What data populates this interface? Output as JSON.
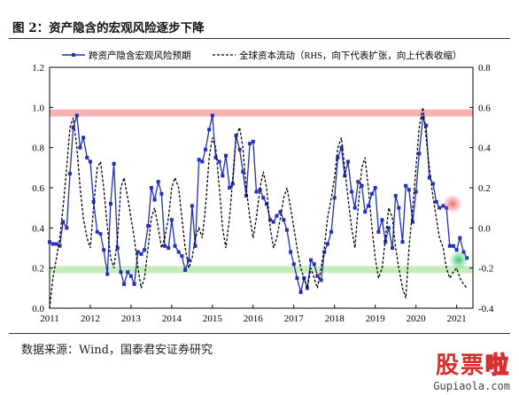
{
  "title": "图 2：资产隐含的宏观风险逐步下降",
  "source": "数据来源：Wind，国泰君安证券研究",
  "watermark": {
    "cn": "股票",
    "cn2": "啦",
    "en": "Gupiaola.com"
  },
  "colors": {
    "series1": "#1f2fbf",
    "series2": "#000000",
    "band_high": "#f6a6a6",
    "band_low": "#bde8b0",
    "marker_red": "#f26b6b",
    "marker_green": "#3cc46a"
  },
  "chart_data": {
    "type": "line",
    "x_range": [
      2011.0,
      2021.4
    ],
    "ylim_left": [
      0,
      1.2
    ],
    "ylim_right": [
      -0.4,
      0.8
    ],
    "x_ticks": [
      "2011",
      "2012",
      "2013",
      "2014",
      "2015",
      "2016",
      "2017",
      "2018",
      "2019",
      "2020",
      "2021"
    ],
    "y_left_ticks": [
      "0.0",
      "0.2",
      "0.4",
      "0.6",
      "0.8",
      "1.0",
      "1.2"
    ],
    "y_right_ticks": [
      "-0.4",
      "-0.2",
      "0.0",
      "0.2",
      "0.4",
      "0.6",
      "0.8"
    ],
    "bands": [
      {
        "axis": "left",
        "from": 0.955,
        "to": 0.99,
        "color": "band_high"
      },
      {
        "axis": "left",
        "from": 0.175,
        "to": 0.21,
        "color": "band_low"
      }
    ],
    "highlights": [
      {
        "x": 2020.9,
        "y_left": 0.52,
        "color": "marker_red"
      },
      {
        "x": 2021.05,
        "y_left": 0.24,
        "color": "marker_green"
      }
    ],
    "series": [
      {
        "name": "跨资产隐含宏观风险预期",
        "axis": "left",
        "style": "solid-marker",
        "x": [
          2011.0,
          2011.08,
          2011.17,
          2011.25,
          2011.33,
          2011.42,
          2011.5,
          2011.58,
          2011.67,
          2011.75,
          2011.83,
          2011.92,
          2012.0,
          2012.08,
          2012.17,
          2012.25,
          2012.33,
          2012.42,
          2012.5,
          2012.58,
          2012.67,
          2012.75,
          2012.83,
          2012.92,
          2013.0,
          2013.08,
          2013.17,
          2013.25,
          2013.33,
          2013.42,
          2013.5,
          2013.58,
          2013.67,
          2013.75,
          2013.83,
          2013.92,
          2014.0,
          2014.08,
          2014.17,
          2014.25,
          2014.33,
          2014.42,
          2014.5,
          2014.58,
          2014.67,
          2014.75,
          2014.83,
          2014.92,
          2015.0,
          2015.08,
          2015.17,
          2015.25,
          2015.33,
          2015.42,
          2015.5,
          2015.58,
          2015.67,
          2015.75,
          2015.83,
          2015.92,
          2016.0,
          2016.08,
          2016.17,
          2016.25,
          2016.33,
          2016.42,
          2016.5,
          2016.58,
          2016.67,
          2016.75,
          2016.83,
          2016.92,
          2017.0,
          2017.08,
          2017.17,
          2017.25,
          2017.33,
          2017.42,
          2017.5,
          2017.58,
          2017.67,
          2017.75,
          2017.83,
          2017.92,
          2018.0,
          2018.08,
          2018.17,
          2018.25,
          2018.33,
          2018.42,
          2018.5,
          2018.58,
          2018.67,
          2018.75,
          2018.83,
          2018.92,
          2019.0,
          2019.08,
          2019.17,
          2019.25,
          2019.33,
          2019.42,
          2019.5,
          2019.58,
          2019.67,
          2019.75,
          2019.83,
          2019.92,
          2020.0,
          2020.08,
          2020.17,
          2020.25,
          2020.33,
          2020.42,
          2020.5,
          2020.58,
          2020.67,
          2020.75,
          2020.83,
          2020.92,
          2021.0,
          2021.08,
          2021.17,
          2021.25
        ],
        "y": [
          0.33,
          0.32,
          0.32,
          0.31,
          0.43,
          0.4,
          0.67,
          0.9,
          0.96,
          0.8,
          0.85,
          0.75,
          0.73,
          0.53,
          0.38,
          0.37,
          0.29,
          0.17,
          0.52,
          0.72,
          0.3,
          0.18,
          0.12,
          0.18,
          0.16,
          0.12,
          0.28,
          0.27,
          0.29,
          0.41,
          0.6,
          0.54,
          0.63,
          0.57,
          0.31,
          0.3,
          0.44,
          0.31,
          0.28,
          0.26,
          0.19,
          0.24,
          0.51,
          0.31,
          0.74,
          0.73,
          0.79,
          0.89,
          0.96,
          0.75,
          0.73,
          0.66,
          0.76,
          0.6,
          0.62,
          0.86,
          0.79,
          0.68,
          0.56,
          0.82,
          0.83,
          0.58,
          0.59,
          0.55,
          0.52,
          0.44,
          0.43,
          0.46,
          0.48,
          0.44,
          0.39,
          0.28,
          0.22,
          0.15,
          0.08,
          0.15,
          0.1,
          0.24,
          0.22,
          0.16,
          0.14,
          0.28,
          0.32,
          0.38,
          0.55,
          0.75,
          0.8,
          0.66,
          0.73,
          0.58,
          0.5,
          0.63,
          0.61,
          0.48,
          0.51,
          0.57,
          0.6,
          0.38,
          0.44,
          0.33,
          0.4,
          0.3,
          0.56,
          0.5,
          0.33,
          0.61,
          0.59,
          0.43,
          0.58,
          0.77,
          0.95,
          0.91,
          0.65,
          0.62,
          0.53,
          0.5,
          0.51,
          0.5,
          0.31,
          0.31,
          0.29,
          0.35,
          0.28,
          0.25
        ]
      },
      {
        "name": "全球资本流动（RHS，向下代表扩张，向上代表收缩）",
        "axis": "right",
        "style": "dashed",
        "x": [
          2011.0,
          2011.08,
          2011.17,
          2011.25,
          2011.33,
          2011.42,
          2011.5,
          2011.58,
          2011.67,
          2011.75,
          2011.83,
          2011.92,
          2012.0,
          2012.08,
          2012.17,
          2012.25,
          2012.33,
          2012.42,
          2012.5,
          2012.58,
          2012.67,
          2012.75,
          2012.83,
          2012.92,
          2013.0,
          2013.08,
          2013.17,
          2013.25,
          2013.33,
          2013.42,
          2013.5,
          2013.58,
          2013.67,
          2013.75,
          2013.83,
          2013.92,
          2014.0,
          2014.08,
          2014.17,
          2014.25,
          2014.33,
          2014.42,
          2014.5,
          2014.58,
          2014.67,
          2014.75,
          2014.83,
          2014.92,
          2015.0,
          2015.08,
          2015.17,
          2015.25,
          2015.33,
          2015.42,
          2015.5,
          2015.58,
          2015.67,
          2015.75,
          2015.83,
          2015.92,
          2016.0,
          2016.08,
          2016.17,
          2016.25,
          2016.33,
          2016.42,
          2016.5,
          2016.58,
          2016.67,
          2016.75,
          2016.83,
          2016.92,
          2017.0,
          2017.08,
          2017.17,
          2017.25,
          2017.33,
          2017.42,
          2017.5,
          2017.58,
          2017.67,
          2017.75,
          2017.83,
          2017.92,
          2018.0,
          2018.08,
          2018.17,
          2018.25,
          2018.33,
          2018.42,
          2018.5,
          2018.58,
          2018.67,
          2018.75,
          2018.83,
          2018.92,
          2019.0,
          2019.08,
          2019.17,
          2019.25,
          2019.33,
          2019.42,
          2019.5,
          2019.58,
          2019.67,
          2019.75,
          2019.83,
          2019.92,
          2020.0,
          2020.08,
          2020.17,
          2020.25,
          2020.33,
          2020.42,
          2020.5,
          2020.58,
          2020.67,
          2020.75,
          2020.83,
          2020.92,
          2021.0,
          2021.08,
          2021.17,
          2021.25
        ],
        "y": [
          -0.4,
          -0.25,
          -0.15,
          -0.05,
          0.1,
          0.3,
          0.5,
          0.55,
          0.4,
          0.2,
          0.05,
          -0.05,
          -0.1,
          0.1,
          0.3,
          0.33,
          0.2,
          0.0,
          -0.15,
          -0.2,
          -0.05,
          0.2,
          0.25,
          0.15,
          0.05,
          -0.05,
          -0.2,
          -0.3,
          -0.25,
          -0.1,
          0.05,
          0.1,
          0.0,
          -0.1,
          -0.05,
          0.05,
          0.2,
          0.25,
          0.2,
          0.05,
          -0.1,
          -0.2,
          -0.15,
          -0.05,
          0.0,
          -0.05,
          0.1,
          0.35,
          0.45,
          0.4,
          0.2,
          0.0,
          -0.1,
          0.05,
          0.25,
          0.45,
          0.5,
          0.4,
          0.2,
          0.05,
          -0.05,
          0.05,
          0.2,
          0.28,
          0.2,
          0.0,
          -0.1,
          -0.05,
          0.05,
          0.15,
          0.2,
          0.1,
          0.0,
          -0.1,
          -0.2,
          -0.25,
          -0.3,
          -0.2,
          -0.25,
          -0.3,
          -0.2,
          -0.1,
          0.05,
          0.15,
          0.25,
          0.4,
          0.45,
          0.3,
          0.15,
          0.0,
          -0.1,
          0.1,
          0.3,
          0.35,
          0.2,
          0.0,
          -0.15,
          -0.25,
          -0.2,
          -0.05,
          0.1,
          0.05,
          -0.1,
          -0.2,
          -0.3,
          -0.35,
          -0.1,
          0.1,
          0.3,
          0.5,
          0.6,
          0.45,
          0.3,
          0.15,
          0.05,
          -0.05,
          -0.1,
          -0.2,
          -0.25,
          -0.22,
          -0.2,
          -0.25,
          -0.28,
          -0.3
        ]
      }
    ]
  }
}
